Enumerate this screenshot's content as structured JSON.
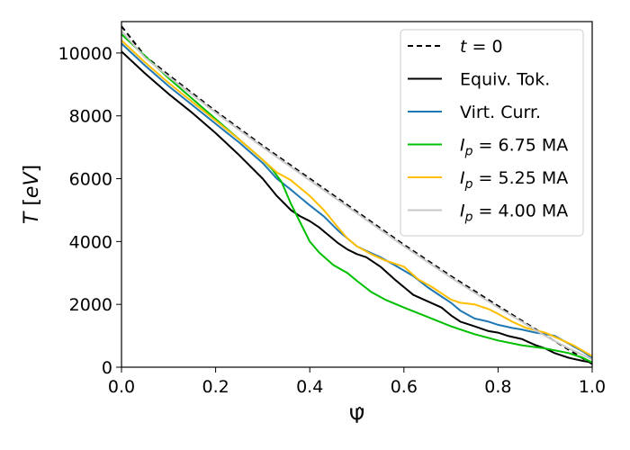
{
  "chart_data": {
    "type": "line",
    "xlabel": "Ψ̂",
    "ylabel": "T [eV]",
    "xlim": [
      0.0,
      1.0
    ],
    "ylim": [
      0,
      11000
    ],
    "xticks": [
      0.0,
      0.2,
      0.4,
      0.6,
      0.8,
      1.0
    ],
    "xtick_labels": [
      "0.0",
      "0.2",
      "0.4",
      "0.6",
      "0.8",
      "1.0"
    ],
    "yticks": [
      0,
      2000,
      4000,
      6000,
      8000,
      10000
    ],
    "ytick_labels": [
      "0",
      "2000",
      "4000",
      "6000",
      "8000",
      "10000"
    ],
    "grid": false,
    "legend_position": "top-right",
    "series": [
      {
        "name": "t = 0",
        "legend_label": [
          "t",
          " = 0"
        ],
        "color": "#000000",
        "dash": "6,4",
        "x": [
          0.0,
          0.05,
          0.1,
          0.2,
          0.3,
          0.4,
          0.5,
          0.6,
          0.7,
          0.8,
          0.9,
          0.95,
          1.0
        ],
        "y": [
          10850,
          9900,
          9300,
          8150,
          7050,
          6000,
          4950,
          3900,
          2900,
          1950,
          1020,
          560,
          100
        ]
      },
      {
        "name": "Equiv. Tok.",
        "legend_label": [
          "",
          "Equiv. Tok."
        ],
        "color": "#000000",
        "dash": "",
        "x": [
          0.0,
          0.05,
          0.1,
          0.15,
          0.2,
          0.25,
          0.3,
          0.33,
          0.36,
          0.38,
          0.4,
          0.42,
          0.44,
          0.46,
          0.48,
          0.5,
          0.52,
          0.55,
          0.58,
          0.6,
          0.62,
          0.65,
          0.68,
          0.7,
          0.72,
          0.75,
          0.78,
          0.8,
          0.82,
          0.85,
          0.88,
          0.9,
          0.92,
          0.95,
          0.98,
          1.0
        ],
        "y": [
          10050,
          9350,
          8700,
          8100,
          7450,
          6750,
          6000,
          5450,
          5000,
          4800,
          4650,
          4450,
          4200,
          3950,
          3750,
          3600,
          3500,
          3200,
          2800,
          2550,
          2300,
          2100,
          1900,
          1650,
          1450,
          1300,
          1150,
          1100,
          1000,
          900,
          700,
          600,
          450,
          300,
          200,
          150
        ]
      },
      {
        "name": "Virt. Curr.",
        "legend_label": [
          "",
          "Virt. Curr."
        ],
        "color": "#1f77b4",
        "dash": "",
        "x": [
          0.0,
          0.05,
          0.1,
          0.15,
          0.2,
          0.25,
          0.3,
          0.33,
          0.36,
          0.38,
          0.4,
          0.43,
          0.46,
          0.48,
          0.5,
          0.52,
          0.55,
          0.58,
          0.62,
          0.65,
          0.68,
          0.7,
          0.72,
          0.75,
          0.78,
          0.8,
          0.83,
          0.85,
          0.88,
          0.9,
          0.92,
          0.95,
          0.98,
          1.0
        ],
        "y": [
          10300,
          9600,
          8950,
          8350,
          7750,
          7150,
          6500,
          6000,
          5650,
          5400,
          5150,
          4800,
          4350,
          4100,
          3850,
          3700,
          3500,
          3250,
          2900,
          2550,
          2250,
          2050,
          1800,
          1550,
          1450,
          1350,
          1250,
          1200,
          1100,
          1050,
          1000,
          750,
          500,
          300
        ]
      },
      {
        "name": "Ip = 6.75 MA",
        "legend_label": [
          "I",
          "p",
          " = 6.75 MA"
        ],
        "color": "#00bf00",
        "dash": "",
        "x": [
          0.0,
          0.05,
          0.1,
          0.15,
          0.2,
          0.25,
          0.3,
          0.32,
          0.34,
          0.36,
          0.38,
          0.4,
          0.42,
          0.45,
          0.48,
          0.5,
          0.53,
          0.56,
          0.6,
          0.65,
          0.7,
          0.75,
          0.8,
          0.85,
          0.9,
          0.95,
          0.98,
          1.0
        ],
        "y": [
          10600,
          9900,
          9200,
          8550,
          7900,
          7250,
          6600,
          6300,
          5900,
          5200,
          4600,
          4000,
          3650,
          3250,
          3000,
          2750,
          2400,
          2150,
          1900,
          1600,
          1300,
          1050,
          850,
          700,
          600,
          450,
          300,
          150
        ]
      },
      {
        "name": "Ip = 5.25 MA",
        "legend_label": [
          "I",
          "p",
          " = 5.25 MA"
        ],
        "color": "#ffbf00",
        "dash": "",
        "x": [
          0.0,
          0.05,
          0.1,
          0.15,
          0.2,
          0.25,
          0.3,
          0.33,
          0.36,
          0.4,
          0.43,
          0.46,
          0.48,
          0.5,
          0.53,
          0.56,
          0.6,
          0.63,
          0.66,
          0.7,
          0.72,
          0.75,
          0.78,
          0.8,
          0.83,
          0.86,
          0.9,
          0.93,
          0.96,
          1.0
        ],
        "y": [
          10400,
          9700,
          9050,
          8450,
          7850,
          7250,
          6600,
          6200,
          5950,
          5450,
          5000,
          4450,
          4100,
          3850,
          3600,
          3400,
          3200,
          2800,
          2550,
          2150,
          2050,
          2000,
          1850,
          1700,
          1450,
          1250,
          1100,
          900,
          700,
          350
        ]
      },
      {
        "name": "Ip = 4.00 MA",
        "legend_label": [
          "I",
          "p",
          " = 4.00 MA"
        ],
        "color": "#c8c8c8",
        "dash": "",
        "x": [
          0.0,
          0.05,
          0.1,
          0.2,
          0.3,
          0.4,
          0.5,
          0.6,
          0.7,
          0.8,
          0.9,
          0.95,
          1.0
        ],
        "y": [
          10700,
          9850,
          9250,
          8100,
          7000,
          5950,
          4900,
          3850,
          2850,
          1900,
          1000,
          600,
          250
        ]
      }
    ]
  }
}
